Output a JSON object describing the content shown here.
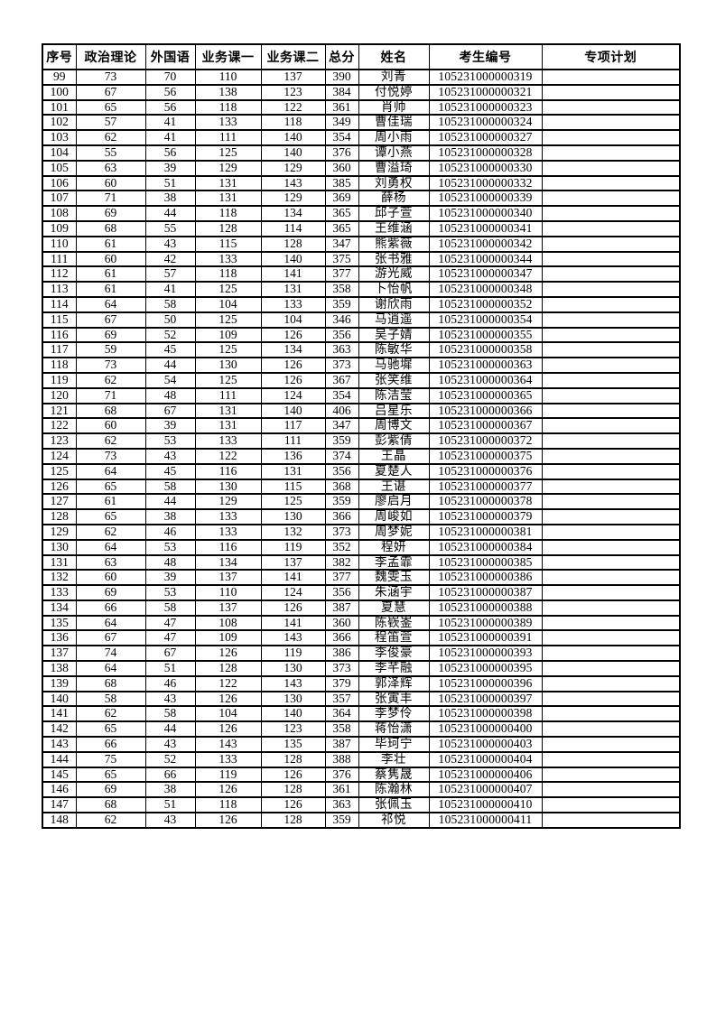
{
  "document": {
    "type": "exam-score-list-page",
    "colors": {
      "text": "#000000",
      "border": "#000000",
      "page_bg": "#ffffff"
    }
  },
  "table": {
    "columns": [
      "序号",
      "政治理论",
      "外国语",
      "业务课一",
      "业务课二",
      "总分",
      "姓名",
      "考生编号",
      "专项计划"
    ],
    "fields": [
      "no",
      "politics",
      "foreign_lang",
      "course1",
      "course2",
      "total",
      "name",
      "candidate_id",
      "special_plan"
    ],
    "rows": [
      [
        "99",
        "73",
        "70",
        "110",
        "137",
        "390",
        "刘青",
        "105231000000319",
        ""
      ],
      [
        "100",
        "67",
        "56",
        "138",
        "123",
        "384",
        "付悦婷",
        "105231000000321",
        ""
      ],
      [
        "101",
        "65",
        "56",
        "118",
        "122",
        "361",
        "肖帅",
        "105231000000323",
        ""
      ],
      [
        "102",
        "57",
        "41",
        "133",
        "118",
        "349",
        "曹佳瑞",
        "105231000000324",
        ""
      ],
      [
        "103",
        "62",
        "41",
        "111",
        "140",
        "354",
        "周小雨",
        "105231000000327",
        ""
      ],
      [
        "104",
        "55",
        "56",
        "125",
        "140",
        "376",
        "谭小燕",
        "105231000000328",
        ""
      ],
      [
        "105",
        "63",
        "39",
        "129",
        "129",
        "360",
        "曹溢琦",
        "105231000000330",
        ""
      ],
      [
        "106",
        "60",
        "51",
        "131",
        "143",
        "385",
        "刘勇权",
        "105231000000332",
        ""
      ],
      [
        "107",
        "71",
        "38",
        "131",
        "129",
        "369",
        "薛杨",
        "105231000000339",
        ""
      ],
      [
        "108",
        "69",
        "44",
        "118",
        "134",
        "365",
        "邱子萱",
        "105231000000340",
        ""
      ],
      [
        "109",
        "68",
        "55",
        "128",
        "114",
        "365",
        "王维涵",
        "105231000000341",
        ""
      ],
      [
        "110",
        "61",
        "43",
        "115",
        "128",
        "347",
        "熊紫薇",
        "105231000000342",
        ""
      ],
      [
        "111",
        "60",
        "42",
        "133",
        "140",
        "375",
        "张书雅",
        "105231000000344",
        ""
      ],
      [
        "112",
        "61",
        "57",
        "118",
        "141",
        "377",
        "游光威",
        "105231000000347",
        ""
      ],
      [
        "113",
        "61",
        "41",
        "125",
        "131",
        "358",
        "卜怡帆",
        "105231000000348",
        ""
      ],
      [
        "114",
        "64",
        "58",
        "104",
        "133",
        "359",
        "谢欣雨",
        "105231000000352",
        ""
      ],
      [
        "115",
        "67",
        "50",
        "125",
        "104",
        "346",
        "马逍遥",
        "105231000000354",
        ""
      ],
      [
        "116",
        "69",
        "52",
        "109",
        "126",
        "356",
        "吴子婧",
        "105231000000355",
        ""
      ],
      [
        "117",
        "59",
        "45",
        "125",
        "134",
        "363",
        "陈敏华",
        "105231000000358",
        ""
      ],
      [
        "118",
        "73",
        "44",
        "130",
        "126",
        "373",
        "马驰墀",
        "105231000000363",
        ""
      ],
      [
        "119",
        "62",
        "54",
        "125",
        "126",
        "367",
        "张笑维",
        "105231000000364",
        ""
      ],
      [
        "120",
        "71",
        "48",
        "111",
        "124",
        "354",
        "陈洁莹",
        "105231000000365",
        ""
      ],
      [
        "121",
        "68",
        "67",
        "131",
        "140",
        "406",
        "吕星乐",
        "105231000000366",
        ""
      ],
      [
        "122",
        "60",
        "39",
        "131",
        "117",
        "347",
        "周博文",
        "105231000000367",
        ""
      ],
      [
        "123",
        "62",
        "53",
        "133",
        "111",
        "359",
        "彭紫倩",
        "105231000000372",
        ""
      ],
      [
        "124",
        "73",
        "43",
        "122",
        "136",
        "374",
        "王晶",
        "105231000000375",
        ""
      ],
      [
        "125",
        "64",
        "45",
        "116",
        "131",
        "356",
        "夏楚人",
        "105231000000376",
        ""
      ],
      [
        "126",
        "65",
        "58",
        "130",
        "115",
        "368",
        "王谌",
        "105231000000377",
        ""
      ],
      [
        "127",
        "61",
        "44",
        "129",
        "125",
        "359",
        "廖启月",
        "105231000000378",
        ""
      ],
      [
        "128",
        "65",
        "38",
        "133",
        "130",
        "366",
        "周峻如",
        "105231000000379",
        ""
      ],
      [
        "129",
        "62",
        "46",
        "133",
        "132",
        "373",
        "周梦妮",
        "105231000000381",
        ""
      ],
      [
        "130",
        "64",
        "53",
        "116",
        "119",
        "352",
        "程妍",
        "105231000000384",
        ""
      ],
      [
        "131",
        "63",
        "48",
        "134",
        "137",
        "382",
        "李孟霏",
        "105231000000385",
        ""
      ],
      [
        "132",
        "60",
        "39",
        "137",
        "141",
        "377",
        "魏雯玉",
        "105231000000386",
        ""
      ],
      [
        "133",
        "69",
        "53",
        "110",
        "124",
        "356",
        "朱涵宇",
        "105231000000387",
        ""
      ],
      [
        "134",
        "66",
        "58",
        "137",
        "126",
        "387",
        "夏慧",
        "105231000000388",
        ""
      ],
      [
        "135",
        "64",
        "47",
        "108",
        "141",
        "360",
        "陈嵚崟",
        "105231000000389",
        ""
      ],
      [
        "136",
        "67",
        "47",
        "109",
        "143",
        "366",
        "程笛萱",
        "105231000000391",
        ""
      ],
      [
        "137",
        "74",
        "67",
        "126",
        "119",
        "386",
        "李俊豪",
        "105231000000393",
        ""
      ],
      [
        "138",
        "64",
        "51",
        "128",
        "130",
        "373",
        "李芊融",
        "105231000000395",
        ""
      ],
      [
        "139",
        "68",
        "46",
        "122",
        "143",
        "379",
        "郭泽辉",
        "105231000000396",
        ""
      ],
      [
        "140",
        "58",
        "43",
        "126",
        "130",
        "357",
        "张寅丰",
        "105231000000397",
        ""
      ],
      [
        "141",
        "62",
        "58",
        "104",
        "140",
        "364",
        "李梦伶",
        "105231000000398",
        ""
      ],
      [
        "142",
        "65",
        "44",
        "126",
        "123",
        "358",
        "蒋怡潇",
        "105231000000400",
        ""
      ],
      [
        "143",
        "66",
        "43",
        "143",
        "135",
        "387",
        "毕珂宁",
        "105231000000403",
        ""
      ],
      [
        "144",
        "75",
        "52",
        "133",
        "128",
        "388",
        "李壮",
        "105231000000404",
        ""
      ],
      [
        "145",
        "65",
        "66",
        "119",
        "126",
        "376",
        "蔡隽晟",
        "105231000000406",
        ""
      ],
      [
        "146",
        "69",
        "38",
        "126",
        "128",
        "361",
        "陈瀚林",
        "105231000000407",
        ""
      ],
      [
        "147",
        "68",
        "51",
        "118",
        "126",
        "363",
        "张佩玉",
        "105231000000410",
        ""
      ],
      [
        "148",
        "62",
        "43",
        "126",
        "128",
        "359",
        "祁悦",
        "105231000000411",
        ""
      ]
    ]
  }
}
